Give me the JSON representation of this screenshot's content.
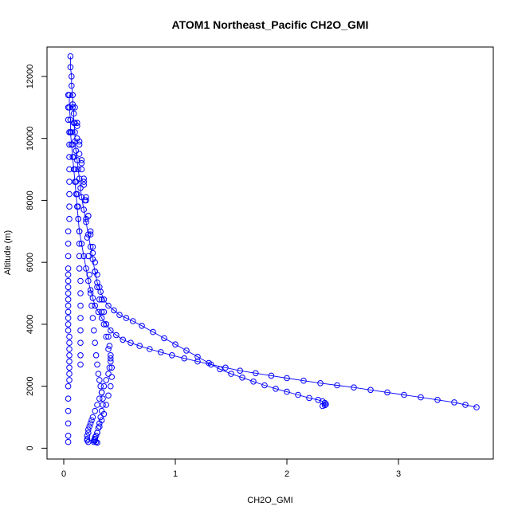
{
  "chart_data": {
    "type": "scatter",
    "title": "ATOM1 Northeast_Pacific CH2O_GMI",
    "xlabel": "CH2O_GMI",
    "ylabel": "Altitude (m)",
    "xlim": [
      -0.15,
      3.85
    ],
    "ylim": [
      -350,
      12950
    ],
    "xticks": [
      0,
      1,
      2,
      3
    ],
    "xtick_labels": [
      "0",
      "1",
      "2",
      "3"
    ],
    "yticks": [
      0,
      2000,
      4000,
      6000,
      8000,
      10000,
      12000
    ],
    "ytick_labels": [
      "0",
      "2000",
      "4000",
      "6000",
      "8000",
      "10000",
      "12000"
    ],
    "grid": false,
    "marker": "open-circle",
    "color": "#0000ff",
    "series": [
      {
        "x": [
          0.06,
          0.06,
          0.07,
          0.07,
          0.08,
          0.08,
          0.09,
          0.09,
          0.1,
          0.1,
          0.11,
          0.12,
          0.13,
          0.14,
          0.15,
          0.16,
          0.18,
          0.2,
          0.22,
          0.24,
          0.26,
          0.28,
          0.3,
          0.33,
          0.36,
          0.4,
          0.45,
          0.5,
          0.56,
          0.62,
          0.7,
          0.8,
          0.9,
          1.0,
          1.1,
          1.2,
          1.3,
          1.4,
          1.5,
          1.6,
          1.7,
          1.8,
          1.9,
          2.0,
          2.1,
          2.2,
          2.28,
          2.32,
          2.34,
          2.35,
          2.34,
          2.32
        ],
        "y": [
          12650,
          12300,
          12000,
          11700,
          11400,
          11100,
          10800,
          10500,
          10200,
          9900,
          9600,
          9300,
          9000,
          8700,
          8400,
          8100,
          7700,
          7300,
          6900,
          6500,
          6100,
          5700,
          5350,
          5050,
          4800,
          4600,
          4450,
          4300,
          4200,
          4100,
          3950,
          3750,
          3550,
          3350,
          3150,
          2950,
          2750,
          2550,
          2400,
          2280,
          2150,
          2030,
          1920,
          1820,
          1720,
          1620,
          1560,
          1510,
          1460,
          1420,
          1390,
          1360
        ],
        "connected": true
      },
      {
        "x": [
          0.05,
          0.05,
          0.06,
          0.06,
          0.07,
          0.08,
          0.09,
          0.1,
          0.11,
          0.12,
          0.13,
          0.14,
          0.16,
          0.18,
          0.2,
          0.22,
          0.24,
          0.26,
          0.28,
          0.31,
          0.34,
          0.38,
          0.42,
          0.47,
          0.53,
          0.6,
          0.68,
          0.77,
          0.87,
          0.97,
          1.08,
          1.2,
          1.32,
          1.45,
          1.58,
          1.72,
          1.86,
          2.0,
          2.15,
          2.3,
          2.45,
          2.6,
          2.75,
          2.9,
          3.05,
          3.2,
          3.35,
          3.5,
          3.6,
          3.7
        ],
        "y": [
          11400,
          11000,
          10600,
          10200,
          9800,
          9400,
          9000,
          8600,
          8200,
          7800,
          7400,
          7000,
          6600,
          6200,
          5800,
          5400,
          5100,
          4850,
          4600,
          4400,
          4200,
          4000,
          3800,
          3650,
          3500,
          3400,
          3300,
          3200,
          3100,
          3000,
          2900,
          2800,
          2700,
          2600,
          2500,
          2420,
          2340,
          2260,
          2180,
          2100,
          2030,
          1960,
          1880,
          1800,
          1720,
          1640,
          1560,
          1480,
          1400,
          1320
        ],
        "connected": true
      },
      {
        "x": [
          0.04,
          0.04,
          0.04,
          0.05,
          0.05,
          0.05,
          0.05,
          0.05,
          0.05,
          0.05,
          0.05,
          0.04,
          0.04,
          0.04,
          0.04,
          0.04,
          0.04,
          0.04,
          0.04,
          0.04,
          0.04,
          0.04,
          0.04,
          0.04,
          0.04,
          0.05,
          0.05,
          0.05,
          0.05,
          0.05,
          0.05,
          0.05,
          0.05,
          0.04,
          0.04,
          0.04,
          0.04,
          0.04,
          0.04
        ],
        "y": [
          11400,
          11000,
          10600,
          10200,
          9800,
          9400,
          9000,
          8600,
          8200,
          7800,
          7400,
          7000,
          6600,
          6200,
          5800,
          5600,
          5400,
          5200,
          5000,
          4800,
          4600,
          4400,
          4200,
          4000,
          3800,
          3600,
          3400,
          3200,
          3000,
          2800,
          2600,
          2400,
          2200,
          2000,
          1600,
          1200,
          800,
          400,
          200
        ],
        "connected": false
      },
      {
        "x": [
          0.07,
          0.08,
          0.09,
          0.1,
          0.11,
          0.12,
          0.13,
          0.13,
          0.14,
          0.14,
          0.14,
          0.14,
          0.15,
          0.15,
          0.15,
          0.15,
          0.15,
          0.15,
          0.15,
          0.15
        ],
        "y": [
          10200,
          9800,
          9400,
          9000,
          8600,
          8200,
          7800,
          7400,
          7000,
          6600,
          6200,
          5800,
          5400,
          5000,
          4600,
          4200,
          3800,
          3400,
          3000,
          2700
        ],
        "connected": false
      },
      {
        "x": [
          0.08,
          0.1,
          0.12,
          0.14,
          0.16,
          0.18,
          0.2,
          0.22,
          0.24,
          0.26,
          0.28,
          0.3,
          0.32,
          0.34,
          0.36,
          0.38,
          0.4,
          0.41,
          0.42,
          0.42,
          0.41,
          0.4,
          0.38,
          0.36,
          0.34,
          0.32,
          0.3,
          0.28,
          0.26,
          0.25,
          0.24,
          0.23,
          0.22,
          0.22,
          0.21,
          0.21,
          0.21,
          0.22
        ],
        "y": [
          11000,
          10500,
          10000,
          9500,
          9000,
          8500,
          8000,
          7500,
          7000,
          6500,
          6000,
          5600,
          5200,
          4800,
          4400,
          4000,
          3600,
          3300,
          3000,
          2800,
          2600,
          2400,
          2200,
          2000,
          1800,
          1600,
          1400,
          1200,
          1000,
          900,
          800,
          700,
          600,
          500,
          400,
          300,
          250,
          200
        ],
        "connected": false
      },
      {
        "x": [
          0.1,
          0.12,
          0.14,
          0.16,
          0.18,
          0.19,
          0.2,
          0.21,
          0.22,
          0.23,
          0.24,
          0.25,
          0.26,
          0.27,
          0.28,
          0.29,
          0.3,
          0.31,
          0.32,
          0.33,
          0.34,
          0.35,
          0.35,
          0.34,
          0.33,
          0.32,
          0.31,
          0.3,
          0.29,
          0.28,
          0.28,
          0.29,
          0.3
        ],
        "y": [
          11000,
          10400,
          9800,
          9200,
          8600,
          8000,
          7400,
          6800,
          6200,
          5600,
          5000,
          4600,
          4200,
          3800,
          3400,
          3000,
          2700,
          2400,
          2200,
          2000,
          1800,
          1600,
          1400,
          1200,
          1000,
          800,
          650,
          500,
          400,
          300,
          250,
          200,
          180
        ],
        "connected": false
      },
      {
        "x": [
          0.12,
          0.14,
          0.16,
          0.18,
          0.2,
          0.22,
          0.24,
          0.26,
          0.28,
          0.3,
          0.32,
          0.34,
          0.36,
          0.38,
          0.4,
          0.42,
          0.43,
          0.43,
          0.42,
          0.4,
          0.38,
          0.36,
          0.34,
          0.32,
          0.3,
          0.28,
          0.27,
          0.27
        ],
        "y": [
          10500,
          9900,
          9300,
          8700,
          8100,
          7500,
          6900,
          6300,
          5700,
          5200,
          4800,
          4400,
          4000,
          3600,
          3200,
          2900,
          2600,
          2300,
          2000,
          1700,
          1400,
          1100,
          900,
          700,
          500,
          350,
          250,
          200
        ],
        "connected": false
      }
    ]
  }
}
